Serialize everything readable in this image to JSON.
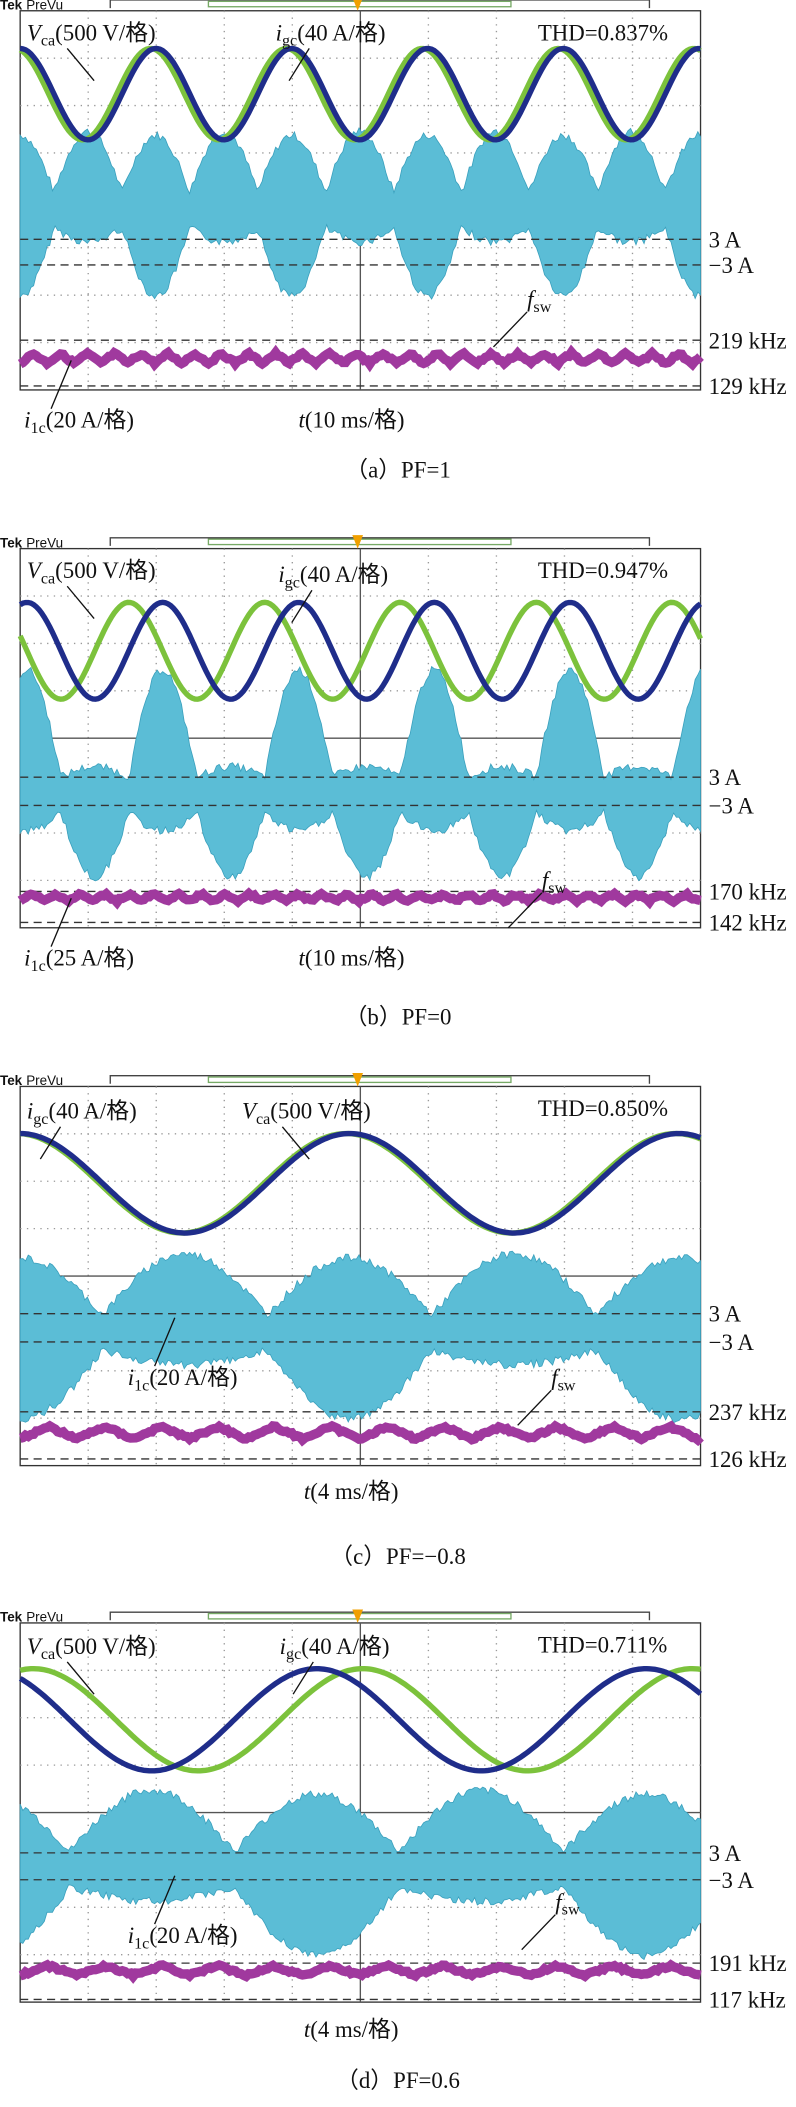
{
  "panels": [
    {
      "header": {
        "brand": "Tek",
        "mode": "PreVu"
      },
      "vca": {
        "sym": "V",
        "sub": "ca",
        "scale": "(500 V/格)"
      },
      "igc": {
        "sym": "i",
        "sub": "gc",
        "scale": "(40 A/格)"
      },
      "thd": "THD=0.837%",
      "i1c": {
        "sym": "i",
        "sub": "1c",
        "scale": "(20 A/格)"
      },
      "fsw": {
        "sym": "f",
        "sub": "sw"
      },
      "time": {
        "sym": "t",
        "scale": "(10 ms/格)"
      },
      "right": [
        "3 A",
        "−3 A",
        "219 kHz",
        "129 kHz"
      ],
      "caption": "（a）PF=1"
    },
    {
      "header": {
        "brand": "Tek",
        "mode": "PreVu"
      },
      "vca": {
        "sym": "V",
        "sub": "ca",
        "scale": "(500 V/格)"
      },
      "igc": {
        "sym": "i",
        "sub": "gc",
        "scale": "(40 A/格)"
      },
      "thd": "THD=0.947%",
      "i1c": {
        "sym": "i",
        "sub": "1c",
        "scale": "(25 A/格)"
      },
      "fsw": {
        "sym": "f",
        "sub": "sw"
      },
      "time": {
        "sym": "t",
        "scale": "(10 ms/格)"
      },
      "right": [
        "3 A",
        "−3 A",
        "170 kHz",
        "142 kHz"
      ],
      "caption": "（b）PF=0"
    },
    {
      "header": {
        "brand": "Tek",
        "mode": "PreVu"
      },
      "vca": {
        "sym": "V",
        "sub": "ca",
        "scale": "(500 V/格)"
      },
      "igc": {
        "sym": "i",
        "sub": "gc",
        "scale": "(40 A/格)"
      },
      "thd": "THD=0.850%",
      "i1c": {
        "sym": "i",
        "sub": "1c",
        "scale": "(20 A/格)"
      },
      "fsw": {
        "sym": "f",
        "sub": "sw"
      },
      "time": {
        "sym": "t",
        "scale": "(4 ms/格)"
      },
      "right": [
        "3 A",
        "−3 A",
        "237 kHz",
        "126 kHz"
      ],
      "caption": "（c）PF=−0.8"
    },
    {
      "header": {
        "brand": "Tek",
        "mode": "PreVu"
      },
      "vca": {
        "sym": "V",
        "sub": "ca",
        "scale": "(500 V/格)"
      },
      "igc": {
        "sym": "i",
        "sub": "gc",
        "scale": "(40 A/格)"
      },
      "thd": "THD=0.711%",
      "i1c": {
        "sym": "i",
        "sub": "1c",
        "scale": "(20 A/格)"
      },
      "fsw": {
        "sym": "f",
        "sub": "sw"
      },
      "time": {
        "sym": "t",
        "scale": "(4 ms/格)"
      },
      "right": [
        "3 A",
        "−3 A",
        "191 kHz",
        "117 kHz"
      ],
      "caption": "（d）PF=0.6"
    }
  ]
}
